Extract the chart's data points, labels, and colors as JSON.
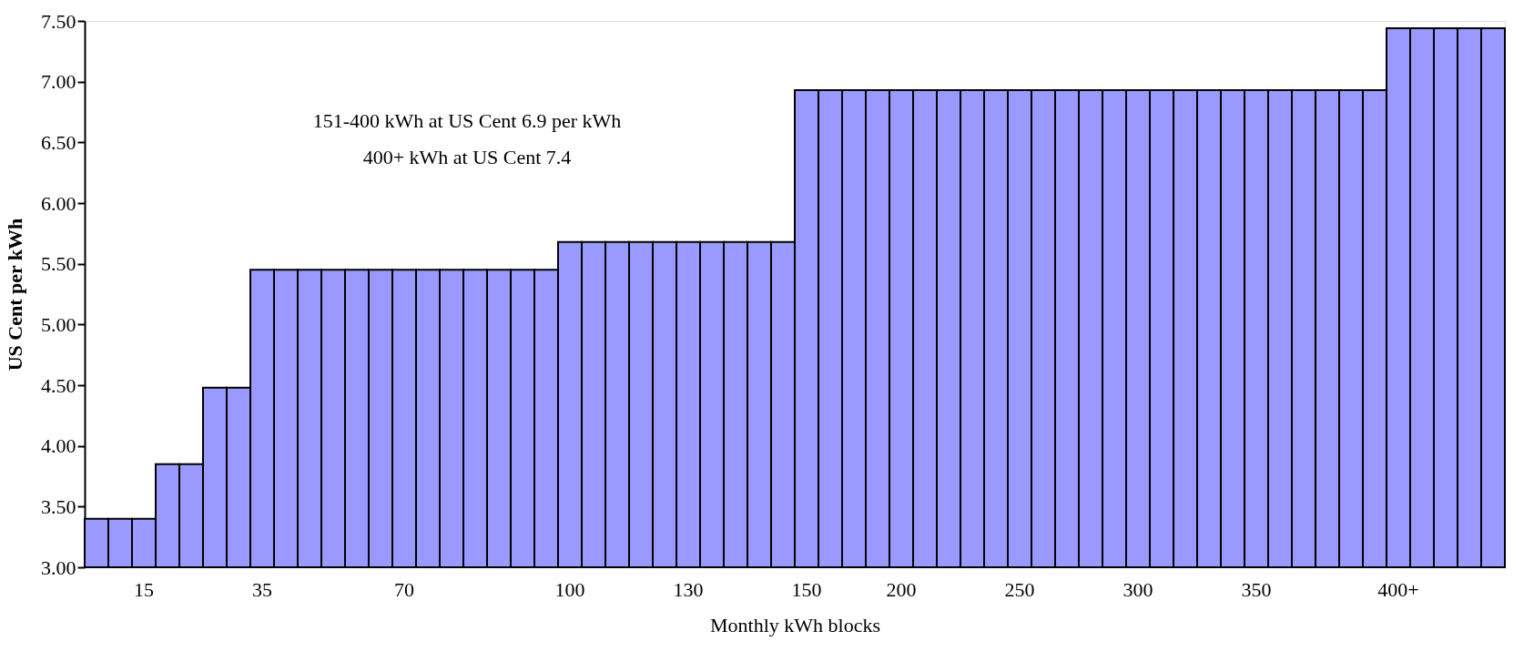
{
  "chart_data": {
    "type": "bar",
    "xlabel": "Monthly kWh blocks",
    "ylabel": "US Cent per kWh",
    "categories": [
      null,
      null,
      "15",
      null,
      null,
      null,
      null,
      "35",
      null,
      null,
      null,
      null,
      null,
      "70",
      null,
      null,
      null,
      null,
      null,
      null,
      "100",
      null,
      null,
      null,
      null,
      "130",
      null,
      null,
      null,
      null,
      "150",
      null,
      null,
      null,
      "200",
      null,
      null,
      null,
      null,
      "250",
      null,
      null,
      null,
      null,
      "300",
      null,
      null,
      null,
      null,
      "350",
      null,
      null,
      null,
      null,
      null,
      "400+",
      null,
      null,
      null,
      null
    ],
    "values": [
      3.4,
      3.4,
      3.4,
      3.85,
      3.85,
      4.48,
      4.48,
      5.45,
      5.45,
      5.45,
      5.45,
      5.45,
      5.45,
      5.45,
      5.45,
      5.45,
      5.45,
      5.45,
      5.45,
      5.45,
      5.68,
      5.68,
      5.68,
      5.68,
      5.68,
      5.68,
      5.68,
      5.68,
      5.68,
      5.68,
      6.93,
      6.93,
      6.93,
      6.93,
      6.93,
      6.93,
      6.93,
      6.93,
      6.93,
      6.93,
      6.93,
      6.93,
      6.93,
      6.93,
      6.93,
      6.93,
      6.93,
      6.93,
      6.93,
      6.93,
      6.93,
      6.93,
      6.93,
      6.93,
      6.93,
      7.44,
      7.44,
      7.44,
      7.44,
      7.44
    ],
    "color": "#9999ff",
    "ylim": [
      3.0,
      7.5
    ],
    "yticks": [
      {
        "value": 3.0,
        "label": "3.00"
      },
      {
        "value": 3.5,
        "label": "3.50"
      },
      {
        "value": 4.0,
        "label": "4.00"
      },
      {
        "value": 4.5,
        "label": "4.50"
      },
      {
        "value": 5.0,
        "label": "5.00"
      },
      {
        "value": 5.5,
        "label": "5.50"
      },
      {
        "value": 6.0,
        "label": "6.00"
      },
      {
        "value": 6.5,
        "label": "6.50"
      },
      {
        "value": 7.0,
        "label": "7.00"
      },
      {
        "value": 7.5,
        "label": "7.50"
      }
    ],
    "annotations": [
      "151-400 kWh at US Cent 6.9 per kWh\n400+ kWh at US Cent 7.4"
    ],
    "grid": false
  }
}
